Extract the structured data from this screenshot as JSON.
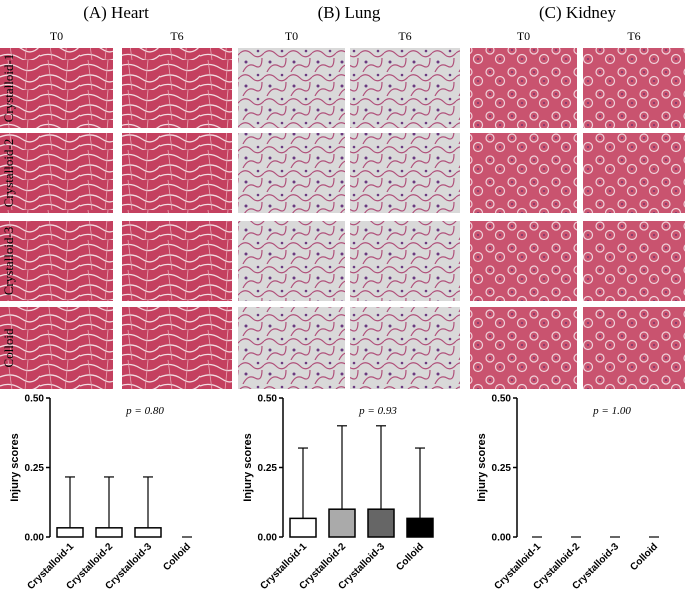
{
  "panels": [
    {
      "title": "(A) Heart",
      "columns": [
        "T0",
        "T6"
      ]
    },
    {
      "title": "(B) Lung",
      "columns": [
        "T0",
        "T6"
      ]
    },
    {
      "title": "(C) Kidney",
      "columns": [
        "T0",
        "T6"
      ]
    }
  ],
  "rows": [
    "Crystalloid-1",
    "Crystalloid-2",
    "Crystalloid-3",
    "Colloid"
  ],
  "chart_data": [
    {
      "type": "bar",
      "ylabel": "Injury scores",
      "annotation": "p = 0.80",
      "categories": [
        "Crystalloid-1",
        "Crystalloid-2",
        "Crystalloid-3",
        "Colloid"
      ],
      "values": [
        0.033,
        0.033,
        0.033,
        0
      ],
      "errors": [
        0.183,
        0.183,
        0.183,
        0
      ],
      "colors": [
        "#ffffff",
        "#ffffff",
        "#ffffff",
        "#ffffff"
      ],
      "ylim": [
        0,
        0.5
      ],
      "yticks": [
        {
          "value": 0,
          "label": "0.00"
        },
        {
          "value": 0.25,
          "label": "0.25"
        },
        {
          "value": 0.5,
          "label": "0.50"
        }
      ]
    },
    {
      "type": "bar",
      "ylabel": "Injury scores",
      "annotation": "p = 0.93",
      "categories": [
        "Crystalloid-1",
        "Crystalloid-2",
        "Crystalloid-3",
        "Colloid"
      ],
      "values": [
        0.067,
        0.1,
        0.1,
        0.067
      ],
      "errors": [
        0.253,
        0.3,
        0.3,
        0.253
      ],
      "colors": [
        "#ffffff",
        "#aaaaaa",
        "#666666",
        "#000000"
      ],
      "ylim": [
        0,
        0.5
      ],
      "yticks": [
        {
          "value": 0,
          "label": "0.00"
        },
        {
          "value": 0.25,
          "label": "0.25"
        },
        {
          "value": 0.5,
          "label": "0.50"
        }
      ]
    },
    {
      "type": "bar",
      "ylabel": "Injury scores",
      "annotation": "p = 1.00",
      "categories": [
        "Crystalloid-1",
        "Crystalloid-2",
        "Crystalloid-3",
        "Colloid"
      ],
      "values": [
        0,
        0,
        0,
        0
      ],
      "errors": [
        0,
        0,
        0,
        0
      ],
      "colors": [
        "#ffffff",
        "#aaaaaa",
        "#666666",
        "#000000"
      ],
      "ylim": [
        0,
        0.5
      ],
      "yticks": [
        {
          "value": 0,
          "label": "0.00"
        },
        {
          "value": 0.25,
          "label": "0.25"
        },
        {
          "value": 0.5,
          "label": "0.50"
        }
      ]
    }
  ]
}
